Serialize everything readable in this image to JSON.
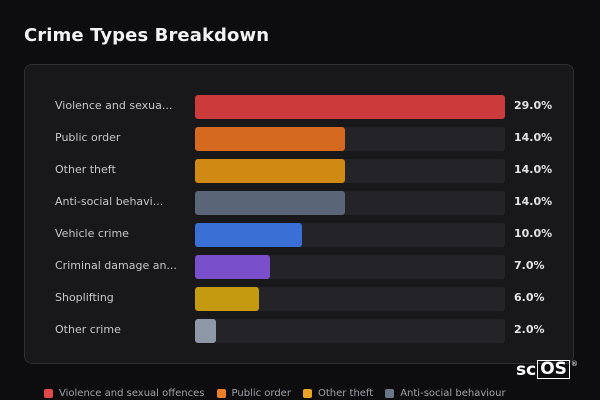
{
  "title": "Crime Types Breakdown",
  "chart_data": {
    "type": "bar",
    "orientation": "horizontal",
    "title": "Crime Types Breakdown",
    "xlim": [
      0,
      29
    ],
    "categories": [
      "Violence and sexua...",
      "Public order",
      "Other theft",
      "Anti-social behavi...",
      "Vehicle crime",
      "Criminal damage an...",
      "Shoplifting",
      "Other crime"
    ],
    "values": [
      29.0,
      14.0,
      14.0,
      14.0,
      10.0,
      7.0,
      6.0,
      2.0
    ],
    "value_labels": [
      "29.0%",
      "14.0%",
      "14.0%",
      "14.0%",
      "10.0%",
      "7.0%",
      "6.0%",
      "2.0%"
    ],
    "colors": [
      "#cc3b3b",
      "#d4691f",
      "#d08a14",
      "#5a6678",
      "#3a70d6",
      "#7a4fcc",
      "#c49a10",
      "#8e97a6"
    ],
    "legend_position": "bottom"
  },
  "legend": [
    {
      "label": "Violence and sexual offences",
      "color": "#e24848"
    },
    {
      "label": "Public order",
      "color": "#ee7f2a"
    },
    {
      "label": "Other theft",
      "color": "#eaa127"
    },
    {
      "label": "Anti-social behaviour",
      "color": "#6b7689"
    }
  ],
  "logo": {
    "text_plain": "sc",
    "text_boxed": "OS",
    "reg": "®"
  }
}
